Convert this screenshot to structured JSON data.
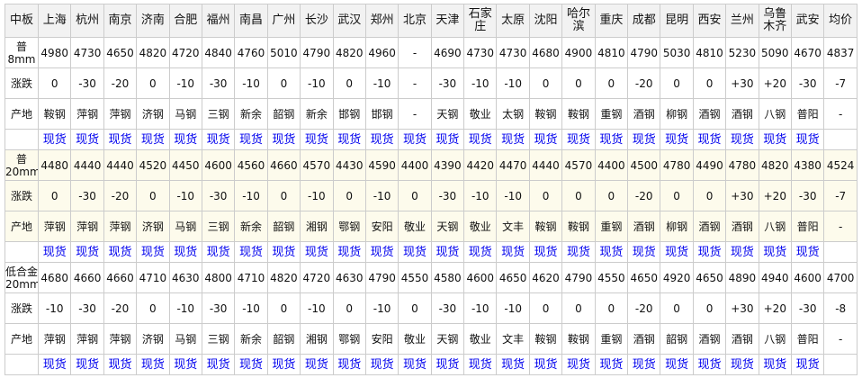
{
  "header": [
    "中板",
    "上海",
    "杭州",
    "南京",
    "济南",
    "合肥",
    "福州",
    "南昌",
    "广州",
    "长沙",
    "武汉",
    "郑州",
    "北京",
    "天津",
    "石家庄",
    "太原",
    "沈阳",
    "哈尔滨",
    "重庆",
    "成都",
    "昆明",
    "西安",
    "兰州",
    "乌鲁木齐",
    "武安",
    "均价"
  ],
  "change_label": "涨跌",
  "origin_label": "产地",
  "spot_label": "现货",
  "colors": {
    "link": "#0000ee",
    "header_bg": "#f2f2f2",
    "highlight_bg": "#fdfbec",
    "border": "#cccccc"
  },
  "blocks": [
    {
      "label": "普8mm",
      "highlight": false,
      "prices": [
        "4980",
        "4730",
        "4650",
        "4820",
        "4720",
        "4840",
        "4760",
        "5010",
        "4790",
        "4820",
        "4960",
        "-",
        "4690",
        "4730",
        "4730",
        "4680",
        "4900",
        "4810",
        "4790",
        "5030",
        "4810",
        "5230",
        "5090",
        "4670",
        "4837"
      ],
      "changes": [
        "0",
        "-30",
        "-20",
        "0",
        "-10",
        "-30",
        "-10",
        "0",
        "-10",
        "0",
        "-10",
        "-",
        "-30",
        "-10",
        "-10",
        "0",
        "0",
        "0",
        "-20",
        "0",
        "0",
        "+30",
        "+20",
        "-30",
        "-7"
      ],
      "origins": [
        "鞍钢",
        "萍钢",
        "萍钢",
        "济钢",
        "马钢",
        "三钢",
        "新余",
        "韶钢",
        "新余",
        "邯钢",
        "邯钢",
        "-",
        "天钢",
        "敬业",
        "太钢",
        "鞍钢",
        "鞍钢",
        "重钢",
        "酒钢",
        "柳钢",
        "酒钢",
        "酒钢",
        "八钢",
        "普阳",
        "-"
      ]
    },
    {
      "label": "普20mm",
      "highlight": true,
      "prices": [
        "4480",
        "4440",
        "4440",
        "4520",
        "4450",
        "4600",
        "4560",
        "4660",
        "4570",
        "4430",
        "4590",
        "4400",
        "4390",
        "4420",
        "4470",
        "4440",
        "4570",
        "4400",
        "4500",
        "4780",
        "4490",
        "4780",
        "4820",
        "4380",
        "4524"
      ],
      "changes": [
        "0",
        "-30",
        "-20",
        "0",
        "-10",
        "-30",
        "-10",
        "0",
        "-10",
        "0",
        "-10",
        "0",
        "-30",
        "-10",
        "-10",
        "0",
        "0",
        "0",
        "-20",
        "0",
        "0",
        "+30",
        "+20",
        "-30",
        "-7"
      ],
      "origins": [
        "萍钢",
        "萍钢",
        "萍钢",
        "济钢",
        "马钢",
        "三钢",
        "新余",
        "韶钢",
        "湘钢",
        "鄂钢",
        "安阳",
        "敬业",
        "天钢",
        "敬业",
        "文丰",
        "鞍钢",
        "鞍钢",
        "重钢",
        "酒钢",
        "柳钢",
        "酒钢",
        "酒钢",
        "八钢",
        "普阳",
        "-"
      ]
    },
    {
      "label": "低合金\n20mm",
      "highlight": false,
      "prices": [
        "4680",
        "4660",
        "4660",
        "4710",
        "4630",
        "4800",
        "4710",
        "4820",
        "4720",
        "4630",
        "4790",
        "4550",
        "4580",
        "4600",
        "4650",
        "4620",
        "4790",
        "4550",
        "4650",
        "4920",
        "4650",
        "4890",
        "4940",
        "4600",
        "4700"
      ],
      "changes": [
        "-10",
        "-30",
        "-20",
        "0",
        "-10",
        "-30",
        "-10",
        "0",
        "-10",
        "0",
        "-10",
        "0",
        "-30",
        "-10",
        "-10",
        "0",
        "0",
        "0",
        "-20",
        "0",
        "0",
        "+30",
        "+20",
        "-30",
        "-8"
      ],
      "origins": [
        "萍钢",
        "萍钢",
        "萍钢",
        "济钢",
        "马钢",
        "三钢",
        "新余",
        "韶钢",
        "湘钢",
        "鄂钢",
        "安阳",
        "敬业",
        "天钢",
        "敬业",
        "文丰",
        "鞍钢",
        "鞍钢",
        "重钢",
        "酒钢",
        "韶钢",
        "酒钢",
        "酒钢",
        "八钢",
        "普阳",
        "-"
      ]
    }
  ]
}
